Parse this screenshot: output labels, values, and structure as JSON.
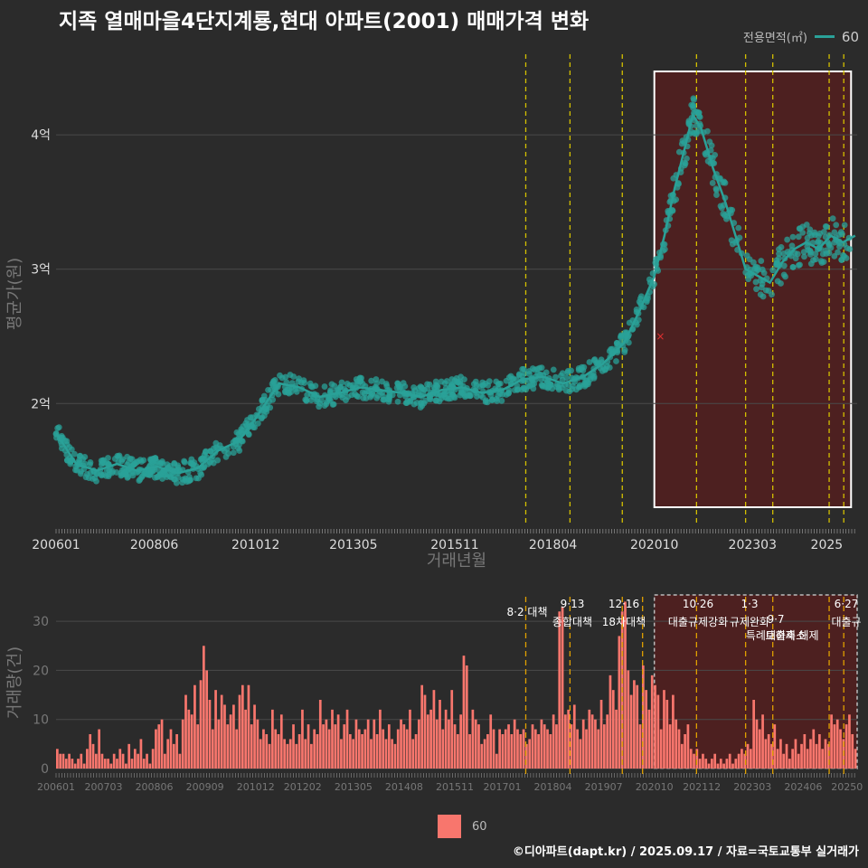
{
  "title": "지족 열매마을4단지계룡,현대 아파트(2001) 매매가격 변화",
  "legend_top": {
    "title": "전용면적(㎡)",
    "label": "60"
  },
  "legend_bottom": {
    "label": "60"
  },
  "credit": "©디아파트(dapt.kr) / 2025.09.17 / 자료=국토교통부 실거래가",
  "colors": {
    "background": "#2b2b2b",
    "grid": "#4a4a4a",
    "price": "#2aa198",
    "bar": "#f8766d",
    "policy": "#d4c000",
    "policy2": "#e0a000",
    "highlight": "#5a1e1e"
  },
  "chart_data": [
    {
      "type": "line",
      "name": "price",
      "title": "",
      "xlabel": "거래년월",
      "ylabel": "평균가(원)",
      "x_range": [
        2006.0,
        2025.75
      ],
      "ylim": [
        1.1,
        4.6
      ],
      "yticks": [
        2,
        3,
        4
      ],
      "ytick_labels": [
        "2억",
        "3억",
        "4억"
      ],
      "xticks": [
        2006.0,
        2008.42,
        2010.92,
        2013.33,
        2015.83,
        2018.25,
        2020.75,
        2023.17,
        2025.0
      ],
      "xtick_labels": [
        "200601",
        "200806",
        "201012",
        "201305",
        "201511",
        "201804",
        "202010",
        "202303",
        "2025"
      ],
      "series": [
        {
          "name": "60",
          "x": [
            2006.0,
            2006.5,
            2007.0,
            2007.5,
            2008.0,
            2008.5,
            2009.0,
            2009.5,
            2010.0,
            2010.5,
            2010.9,
            2011.5,
            2012.0,
            2012.5,
            2013.0,
            2013.5,
            2014.0,
            2014.5,
            2015.0,
            2015.5,
            2016.0,
            2016.5,
            2017.0,
            2017.5,
            2018.0,
            2018.5,
            2019.0,
            2019.5,
            2020.0,
            2020.4,
            2020.75,
            2021.0,
            2021.25,
            2021.5,
            2021.7,
            2021.9,
            2022.2,
            2022.5,
            2022.8,
            2023.0,
            2023.3,
            2023.6,
            2023.9,
            2024.2,
            2024.5,
            2024.8,
            2025.1,
            2025.4,
            2025.7
          ],
          "values": [
            1.78,
            1.55,
            1.5,
            1.55,
            1.5,
            1.53,
            1.48,
            1.52,
            1.65,
            1.72,
            1.88,
            2.15,
            2.12,
            2.05,
            2.08,
            2.12,
            2.1,
            2.08,
            2.05,
            2.1,
            2.12,
            2.08,
            2.1,
            2.18,
            2.2,
            2.15,
            2.2,
            2.3,
            2.45,
            2.7,
            2.95,
            3.25,
            3.6,
            3.9,
            4.15,
            4.05,
            3.75,
            3.5,
            3.2,
            3.0,
            2.95,
            2.9,
            3.05,
            3.15,
            3.2,
            3.15,
            3.25,
            3.2,
            3.25
          ]
        }
      ],
      "highlight_region": [
        2020.75,
        2025.6
      ],
      "policy_lines": [
        2017.58,
        2018.67,
        2019.96,
        2021.79,
        2023.0,
        2023.67,
        2025.06,
        2025.42
      ],
      "marker": {
        "x": 2020.9,
        "y": 2.5
      }
    },
    {
      "type": "bar",
      "name": "volume",
      "title": "",
      "xlabel": "",
      "ylabel": "거래량(건)",
      "ylim": [
        0,
        35
      ],
      "yticks": [
        0,
        10,
        20,
        30
      ],
      "xticks": [
        2006.0,
        2007.17,
        2008.42,
        2009.67,
        2010.92,
        2012.08,
        2013.33,
        2014.58,
        2015.83,
        2017.0,
        2018.25,
        2019.5,
        2020.75,
        2021.92,
        2023.17,
        2024.42,
        2025.5
      ],
      "xtick_labels": [
        "200601",
        "200703",
        "200806",
        "200909",
        "201012",
        "201202",
        "201305",
        "201408",
        "201511",
        "201701",
        "201804",
        "201907",
        "202010",
        "202112",
        "202303",
        "202406",
        "20250"
      ],
      "values": [
        4,
        3,
        3,
        2,
        3,
        2,
        1,
        2,
        3,
        1,
        4,
        7,
        5,
        3,
        8,
        3,
        2,
        2,
        1,
        3,
        2,
        4,
        3,
        1,
        5,
        2,
        4,
        3,
        6,
        2,
        3,
        1,
        4,
        8,
        9,
        10,
        3,
        6,
        8,
        5,
        7,
        3,
        10,
        15,
        12,
        11,
        17,
        9,
        18,
        25,
        20,
        14,
        8,
        16,
        10,
        15,
        13,
        9,
        11,
        13,
        8,
        15,
        17,
        12,
        17,
        9,
        13,
        10,
        6,
        8,
        7,
        5,
        12,
        8,
        7,
        11,
        6,
        5,
        6,
        9,
        5,
        7,
        12,
        6,
        9,
        5,
        8,
        7,
        14,
        9,
        10,
        8,
        12,
        9,
        11,
        6,
        9,
        12,
        7,
        6,
        10,
        8,
        7,
        8,
        10,
        6,
        10,
        7,
        12,
        8,
        6,
        9,
        6,
        5,
        8,
        10,
        9,
        8,
        12,
        6,
        7,
        10,
        17,
        15,
        11,
        12,
        16,
        10,
        14,
        8,
        12,
        10,
        16,
        9,
        7,
        11,
        23,
        21,
        7,
        12,
        10,
        9,
        5,
        6,
        7,
        11,
        8,
        3,
        8,
        7,
        8,
        9,
        7,
        10,
        8,
        7,
        8,
        5,
        6,
        9,
        8,
        7,
        10,
        9,
        8,
        7,
        11,
        9,
        32,
        33,
        11,
        12,
        9,
        13,
        8,
        6,
        10,
        8,
        12,
        11,
        10,
        8,
        14,
        9,
        11,
        19,
        16,
        12,
        27,
        32,
        34,
        20,
        15,
        18,
        17,
        9,
        21,
        16,
        12,
        19,
        17,
        15,
        8,
        16,
        14,
        9,
        15,
        10,
        8,
        5,
        7,
        9,
        4,
        3,
        4,
        2,
        3,
        2,
        1,
        2,
        3,
        1,
        2,
        1,
        2,
        3,
        1,
        2,
        3,
        4,
        3,
        5,
        4,
        14,
        10,
        8,
        11,
        6,
        7,
        5,
        9,
        4,
        6,
        3,
        5,
        2,
        4,
        6,
        3,
        5,
        7,
        4,
        6,
        8,
        5,
        7,
        4,
        6,
        5,
        11,
        9,
        10,
        8,
        6,
        9,
        11,
        7,
        4
      ]
    }
  ],
  "price_axis": {
    "xlabel": "거래년월",
    "ylabel": "평균가(원)"
  },
  "volume_axis": {
    "ylabel": "거래량(건)"
  },
  "policy_labels": [
    {
      "date": "8·2 대책",
      "name": ""
    },
    {
      "date": "9·13",
      "name": "종합대책"
    },
    {
      "date": "12·16",
      "name": "18차대책"
    },
    {
      "date": "10·26",
      "name": "대출규제강화"
    },
    {
      "date": "1·3",
      "name": "규제완화"
    },
    {
      "date": "9·7",
      "name": "특례대출축소"
    },
    {
      "date": "",
      "name": "토허제 해제"
    },
    {
      "date": "6·27",
      "name": "대출규"
    }
  ]
}
